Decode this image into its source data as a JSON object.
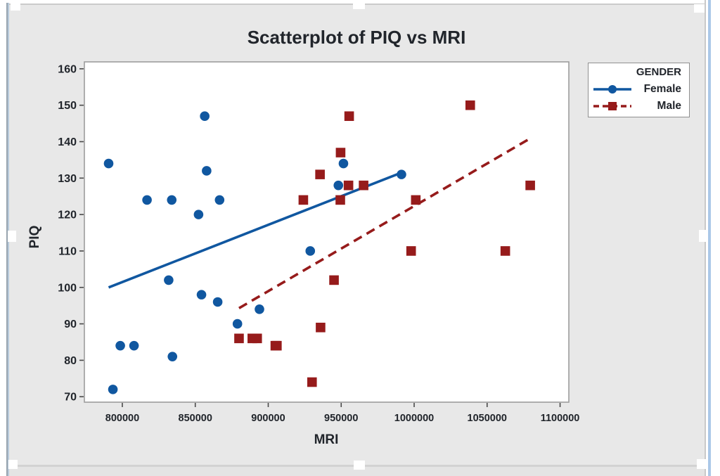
{
  "chart_data": {
    "type": "scatter",
    "title": "Scatterplot of PIQ vs MRI",
    "xlabel": "MRI",
    "ylabel": "PIQ",
    "xlim": [
      774000,
      1106000
    ],
    "ylim": [
      68.5,
      161.9
    ],
    "x_ticks": [
      800000,
      850000,
      900000,
      950000,
      1000000,
      1050000,
      1100000
    ],
    "y_ticks": [
      70,
      80,
      90,
      100,
      110,
      120,
      130,
      140,
      150,
      160
    ],
    "grid": false,
    "legend_title": "GENDER",
    "legend_position": "outside-top-right",
    "frame_color": "#9d9d9d",
    "panel_color": "#e8e8e8",
    "series": [
      {
        "name": "Female",
        "color": "#1057a0",
        "marker": "circle",
        "line_style": "solid",
        "points": [
          [
            790619,
            134
          ],
          [
            793549,
            72
          ],
          [
            798612,
            84
          ],
          [
            808020,
            84
          ],
          [
            816932,
            124
          ],
          [
            831772,
            102
          ],
          [
            833868,
            124
          ],
          [
            834344,
            81
          ],
          [
            852244,
            120
          ],
          [
            854258,
            98
          ],
          [
            856472,
            147
          ],
          [
            857782,
            132
          ],
          [
            865363,
            96
          ],
          [
            866662,
            124
          ],
          [
            878897,
            90
          ],
          [
            893983,
            94
          ],
          [
            928799,
            110
          ],
          [
            948066,
            128
          ],
          [
            951545,
            134
          ],
          [
            991305,
            131
          ]
        ],
        "trend_line": {
          "x": [
            790619,
            991305
          ],
          "y": [
            100,
            131.5
          ]
        }
      },
      {
        "name": "Male",
        "color": "#961b1b",
        "marker": "square",
        "line_style": "dashed",
        "points": [
          [
            879987,
            86
          ],
          [
            889083,
            86
          ],
          [
            892420,
            86
          ],
          [
            904858,
            84
          ],
          [
            905940,
            84
          ],
          [
            924059,
            124
          ],
          [
            930016,
            74
          ],
          [
            935494,
            131
          ],
          [
            935863,
            89
          ],
          [
            945088,
            102
          ],
          [
            949395,
            124
          ],
          [
            949589,
            137
          ],
          [
            955003,
            128
          ],
          [
            955466,
            147
          ],
          [
            965353,
            128
          ],
          [
            997925,
            110
          ],
          [
            1001121,
            124
          ],
          [
            1038437,
            150
          ],
          [
            1062462,
            110
          ],
          [
            1079549,
            128
          ]
        ],
        "trend_line": {
          "x": [
            879987,
            1079549
          ],
          "y": [
            94.3,
            140.9
          ]
        }
      }
    ]
  },
  "window": {
    "selection_handle_color": "#ffffff",
    "right_border_color": "#abc8e8"
  }
}
